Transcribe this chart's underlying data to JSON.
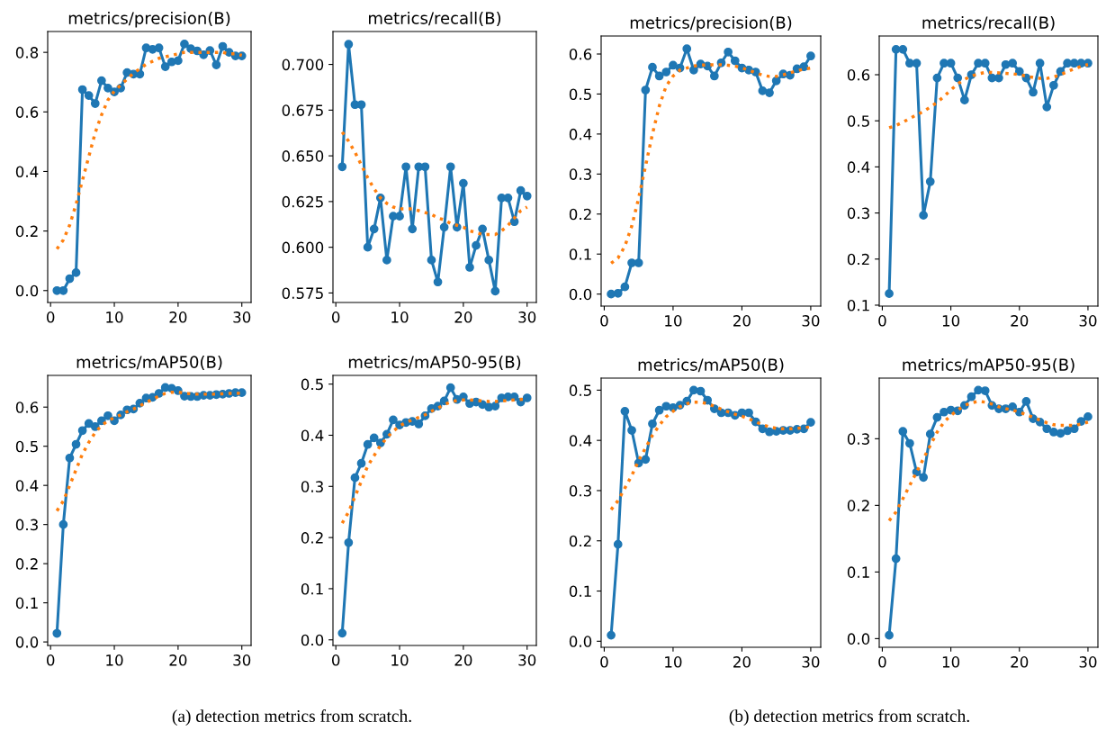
{
  "chart_data": [
    {
      "type": "line",
      "title": "metrics/precision(B)",
      "x": [
        1,
        2,
        3,
        4,
        5,
        6,
        7,
        8,
        9,
        10,
        11,
        12,
        13,
        14,
        15,
        16,
        17,
        18,
        19,
        20,
        21,
        22,
        23,
        24,
        25,
        26,
        27,
        28,
        29,
        30
      ],
      "xlim": [
        -0.45,
        31.45
      ],
      "xticks": [
        0,
        10,
        20,
        30
      ],
      "ylim": [
        -0.04,
        0.87
      ],
      "yticks": [
        {
          "value": 0,
          "label": "0.0"
        },
        0.2,
        0.4,
        0.6,
        0.8
      ],
      "series": [
        {
          "color": "#1f77b4",
          "marker": "circle",
          "line_style": "solid",
          "values": [
            0,
            0,
            0.04,
            0.06,
            0.675,
            0.655,
            0.628,
            0.705,
            0.68,
            0.667,
            0.68,
            0.732,
            0.727,
            0.727,
            0.815,
            0.81,
            0.815,
            0.752,
            0.768,
            0.772,
            0.828,
            0.812,
            0.805,
            0.792,
            0.806,
            0.758,
            0.82,
            0.8,
            0.788,
            0.788
          ]
        },
        {
          "color": "#ff7f0e",
          "line_style": "dotted",
          "values": [
            0.14,
            0.17,
            0.22,
            0.29,
            0.37,
            0.45,
            0.53,
            0.59,
            0.64,
            0.67,
            0.69,
            0.71,
            0.73,
            0.745,
            0.76,
            0.77,
            0.78,
            0.785,
            0.79,
            0.795,
            0.8,
            0.8,
            0.8,
            0.8,
            0.8,
            0.8,
            0.8,
            0.795,
            0.795,
            0.79
          ]
        }
      ]
    },
    {
      "type": "line",
      "title": "metrics/recall(B)",
      "x": [
        1,
        2,
        3,
        4,
        5,
        6,
        7,
        8,
        9,
        10,
        11,
        12,
        13,
        14,
        15,
        16,
        17,
        18,
        19,
        20,
        21,
        22,
        23,
        24,
        25,
        26,
        27,
        28,
        29,
        30
      ],
      "xlim": [
        -0.45,
        31.45
      ],
      "xticks": [
        0,
        10,
        20,
        30
      ],
      "ylim": [
        0.5698,
        0.718
      ],
      "yticks": [
        0.575,
        {
          "value": 0.6,
          "label": "0.600"
        },
        0.625,
        {
          "value": 0.65,
          "label": "0.650"
        },
        0.675,
        {
          "value": 0.7,
          "label": "0.700"
        }
      ],
      "series": [
        {
          "color": "#1f77b4",
          "marker": "circle",
          "line_style": "solid",
          "values": [
            0.644,
            0.711,
            0.678,
            0.678,
            0.6,
            0.61,
            0.627,
            0.593,
            0.617,
            0.617,
            0.644,
            0.61,
            0.644,
            0.644,
            0.593,
            0.581,
            0.611,
            0.644,
            0.611,
            0.635,
            0.589,
            0.601,
            0.61,
            0.593,
            0.576,
            0.627,
            0.627,
            0.614,
            0.631,
            0.628
          ]
        },
        {
          "color": "#ff7f0e",
          "line_style": "dotted",
          "values": [
            0.663,
            0.658,
            0.652,
            0.645,
            0.638,
            0.632,
            0.627,
            0.624,
            0.622,
            0.621,
            0.621,
            0.621,
            0.62,
            0.619,
            0.618,
            0.616,
            0.615,
            0.613,
            0.612,
            0.611,
            0.609,
            0.608,
            0.607,
            0.607,
            0.607,
            0.609,
            0.612,
            0.616,
            0.62,
            0.622
          ]
        }
      ]
    },
    {
      "type": "line",
      "title": "metrics/precision(B)",
      "x": [
        1,
        2,
        3,
        4,
        5,
        6,
        7,
        8,
        9,
        10,
        11,
        12,
        13,
        14,
        15,
        16,
        17,
        18,
        19,
        20,
        21,
        22,
        23,
        24,
        25,
        26,
        27,
        28,
        29,
        30
      ],
      "xlim": [
        -0.45,
        31.45
      ],
      "xticks": [
        0,
        10,
        20,
        30
      ],
      "ylim": [
        -0.03,
        0.645
      ],
      "yticks": [
        {
          "value": 0,
          "label": "0.0"
        },
        0.1,
        0.2,
        0.3,
        0.4,
        0.5,
        0.6
      ],
      "series": [
        {
          "color": "#1f77b4",
          "marker": "circle",
          "line_style": "solid",
          "values": [
            0,
            0.002,
            0.018,
            0.078,
            0.078,
            0.51,
            0.567,
            0.545,
            0.555,
            0.572,
            0.565,
            0.613,
            0.56,
            0.575,
            0.57,
            0.545,
            0.578,
            0.605,
            0.583,
            0.565,
            0.56,
            0.555,
            0.508,
            0.503,
            0.533,
            0.55,
            0.547,
            0.563,
            0.568,
            0.595
          ]
        },
        {
          "color": "#ff7f0e",
          "line_style": "dotted",
          "values": [
            0.077,
            0.09,
            0.12,
            0.17,
            0.24,
            0.32,
            0.4,
            0.47,
            0.52,
            0.545,
            0.56,
            0.565,
            0.57,
            0.572,
            0.573,
            0.573,
            0.573,
            0.572,
            0.57,
            0.565,
            0.56,
            0.553,
            0.547,
            0.544,
            0.544,
            0.548,
            0.553,
            0.558,
            0.562,
            0.565
          ]
        }
      ]
    },
    {
      "type": "line",
      "title": "metrics/recall(B)",
      "x": [
        1,
        2,
        3,
        4,
        5,
        6,
        7,
        8,
        9,
        10,
        11,
        12,
        13,
        14,
        15,
        16,
        17,
        18,
        19,
        20,
        21,
        22,
        23,
        24,
        25,
        26,
        27,
        28,
        29,
        30
      ],
      "xlim": [
        -0.45,
        31.45
      ],
      "xticks": [
        0,
        10,
        20,
        30
      ],
      "ylim": [
        0.098,
        0.684
      ],
      "yticks": [
        0.1,
        0.2,
        0.3,
        0.4,
        0.5,
        0.6
      ],
      "series": [
        {
          "color": "#1f77b4",
          "marker": "circle",
          "line_style": "solid",
          "values": [
            0.125,
            0.655,
            0.655,
            0.625,
            0.625,
            0.295,
            0.368,
            0.593,
            0.625,
            0.625,
            0.593,
            0.545,
            0.6,
            0.625,
            0.625,
            0.593,
            0.593,
            0.622,
            0.625,
            0.607,
            0.593,
            0.562,
            0.625,
            0.53,
            0.577,
            0.607,
            0.625,
            0.625,
            0.625,
            0.625
          ]
        },
        {
          "color": "#ff7f0e",
          "line_style": "dotted",
          "values": [
            0.485,
            0.49,
            0.497,
            0.505,
            0.513,
            0.52,
            0.53,
            0.54,
            0.553,
            0.567,
            0.58,
            0.59,
            0.597,
            0.602,
            0.605,
            0.605,
            0.604,
            0.603,
            0.602,
            0.6,
            0.597,
            0.594,
            0.592,
            0.592,
            0.595,
            0.6,
            0.607,
            0.613,
            0.618,
            0.622
          ]
        }
      ]
    },
    {
      "type": "line",
      "title": "metrics/mAP50(B)",
      "annotations": [
        "(a) detection metrics from scratch."
      ],
      "x": [
        1,
        2,
        3,
        4,
        5,
        6,
        7,
        8,
        9,
        10,
        11,
        12,
        13,
        14,
        15,
        16,
        17,
        18,
        19,
        20,
        21,
        22,
        23,
        24,
        25,
        26,
        27,
        28,
        29,
        30
      ],
      "xlim": [
        -0.45,
        31.45
      ],
      "xticks": [
        0,
        10,
        20,
        30
      ],
      "ylim": [
        -0.009,
        0.681
      ],
      "yticks": [
        {
          "value": 0,
          "label": "0.0"
        },
        0.1,
        0.2,
        0.3,
        0.4,
        0.5,
        0.6
      ],
      "series": [
        {
          "color": "#1f77b4",
          "marker": "circle",
          "line_style": "solid",
          "values": [
            0.022,
            0.3,
            0.47,
            0.505,
            0.54,
            0.558,
            0.55,
            0.565,
            0.578,
            0.565,
            0.58,
            0.593,
            0.595,
            0.61,
            0.623,
            0.625,
            0.635,
            0.65,
            0.648,
            0.642,
            0.628,
            0.627,
            0.627,
            0.63,
            0.63,
            0.632,
            0.633,
            0.635,
            0.637,
            0.637
          ]
        },
        {
          "color": "#ff7f0e",
          "line_style": "dotted",
          "values": [
            0.335,
            0.36,
            0.4,
            0.44,
            0.48,
            0.51,
            0.535,
            0.553,
            0.565,
            0.573,
            0.58,
            0.588,
            0.595,
            0.603,
            0.612,
            0.62,
            0.628,
            0.635,
            0.638,
            0.638,
            0.636,
            0.634,
            0.633,
            0.633,
            0.633,
            0.633,
            0.634,
            0.635,
            0.635,
            0.636
          ]
        }
      ]
    },
    {
      "type": "line",
      "title": "metrics/mAP50-95(B)",
      "x": [
        1,
        2,
        3,
        4,
        5,
        6,
        7,
        8,
        9,
        10,
        11,
        12,
        13,
        14,
        15,
        16,
        17,
        18,
        19,
        20,
        21,
        22,
        23,
        24,
        25,
        26,
        27,
        28,
        29,
        30
      ],
      "xlim": [
        -0.45,
        31.45
      ],
      "xticks": [
        0,
        10,
        20,
        30
      ],
      "ylim": [
        -0.011,
        0.517
      ],
      "yticks": [
        {
          "value": 0,
          "label": "0.0"
        },
        0.1,
        0.2,
        0.3,
        0.4,
        0.5
      ],
      "series": [
        {
          "color": "#1f77b4",
          "marker": "circle",
          "line_style": "solid",
          "values": [
            0.013,
            0.19,
            0.317,
            0.345,
            0.382,
            0.395,
            0.385,
            0.402,
            0.43,
            0.42,
            0.425,
            0.427,
            0.422,
            0.438,
            0.452,
            0.457,
            0.467,
            0.493,
            0.47,
            0.475,
            0.462,
            0.465,
            0.46,
            0.455,
            0.457,
            0.473,
            0.475,
            0.475,
            0.465,
            0.473
          ]
        },
        {
          "color": "#ff7f0e",
          "line_style": "dotted",
          "values": [
            0.228,
            0.25,
            0.28,
            0.31,
            0.34,
            0.36,
            0.38,
            0.395,
            0.408,
            0.418,
            0.425,
            0.43,
            0.435,
            0.44,
            0.447,
            0.453,
            0.46,
            0.465,
            0.468,
            0.469,
            0.469,
            0.468,
            0.467,
            0.466,
            0.466,
            0.467,
            0.468,
            0.469,
            0.47,
            0.471
          ]
        }
      ]
    },
    {
      "type": "line",
      "title": "metrics/mAP50(B)",
      "annotations": [
        "(b) detection metrics from scratch."
      ],
      "x": [
        1,
        2,
        3,
        4,
        5,
        6,
        7,
        8,
        9,
        10,
        11,
        12,
        13,
        14,
        15,
        16,
        17,
        18,
        19,
        20,
        21,
        22,
        23,
        24,
        25,
        26,
        27,
        28,
        29,
        30
      ],
      "xlim": [
        -0.45,
        31.45
      ],
      "xticks": [
        0,
        10,
        20,
        30
      ],
      "ylim": [
        -0.012,
        0.524
      ],
      "yticks": [
        {
          "value": 0,
          "label": "0.0"
        },
        0.1,
        0.2,
        0.3,
        0.4,
        0.5
      ],
      "series": [
        {
          "color": "#1f77b4",
          "marker": "circle",
          "line_style": "solid",
          "values": [
            0.012,
            0.193,
            0.458,
            0.42,
            0.355,
            0.362,
            0.433,
            0.46,
            0.468,
            0.465,
            0.47,
            0.478,
            0.5,
            0.498,
            0.48,
            0.463,
            0.455,
            0.455,
            0.45,
            0.455,
            0.455,
            0.437,
            0.423,
            0.417,
            0.418,
            0.42,
            0.42,
            0.422,
            0.423,
            0.436
          ]
        },
        {
          "color": "#ff7f0e",
          "line_style": "dotted",
          "values": [
            0.262,
            0.28,
            0.305,
            0.33,
            0.36,
            0.385,
            0.41,
            0.43,
            0.447,
            0.458,
            0.467,
            0.473,
            0.476,
            0.476,
            0.473,
            0.468,
            0.462,
            0.457,
            0.452,
            0.448,
            0.443,
            0.437,
            0.431,
            0.427,
            0.424,
            0.423,
            0.423,
            0.424,
            0.425,
            0.427
          ]
        }
      ]
    },
    {
      "type": "line",
      "title": "metrics/mAP50-95(B)",
      "x": [
        1,
        2,
        3,
        4,
        5,
        6,
        7,
        8,
        9,
        10,
        11,
        12,
        13,
        14,
        15,
        16,
        17,
        18,
        19,
        20,
        21,
        22,
        23,
        24,
        25,
        26,
        27,
        28,
        29,
        30
      ],
      "xlim": [
        -0.45,
        31.45
      ],
      "xticks": [
        0,
        10,
        20,
        30
      ],
      "ylim": [
        -0.013,
        0.391
      ],
      "yticks": [
        {
          "value": 0,
          "label": "0.0"
        },
        0.1,
        0.2,
        0.3
      ],
      "series": [
        {
          "color": "#1f77b4",
          "marker": "circle",
          "line_style": "solid",
          "values": [
            0.005,
            0.12,
            0.311,
            0.293,
            0.25,
            0.242,
            0.307,
            0.332,
            0.34,
            0.343,
            0.342,
            0.35,
            0.363,
            0.373,
            0.372,
            0.35,
            0.345,
            0.345,
            0.348,
            0.34,
            0.356,
            0.33,
            0.325,
            0.315,
            0.31,
            0.308,
            0.312,
            0.315,
            0.326,
            0.333
          ]
        },
        {
          "color": "#ff7f0e",
          "line_style": "dotted",
          "values": [
            0.177,
            0.19,
            0.21,
            0.23,
            0.25,
            0.27,
            0.29,
            0.31,
            0.325,
            0.335,
            0.343,
            0.35,
            0.354,
            0.356,
            0.355,
            0.352,
            0.348,
            0.345,
            0.343,
            0.34,
            0.336,
            0.332,
            0.328,
            0.324,
            0.321,
            0.32,
            0.32,
            0.32,
            0.322,
            0.325
          ]
        }
      ]
    }
  ]
}
